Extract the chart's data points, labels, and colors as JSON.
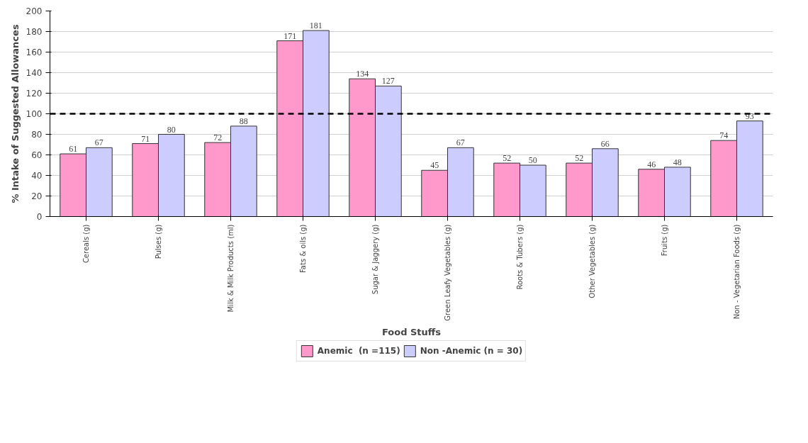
{
  "chart_data": {
    "type": "bar",
    "xlabel": "Food Stuffs",
    "ylabel": "% Intake of Suggested Allowances",
    "categories": [
      "Cereals (g)",
      "Pulses (g)",
      "Milk & Milk Products (ml)",
      "Fats & oils (g)",
      "Sugar & Jaggery (g)",
      "Green Leafy Vegetables (g)",
      "Roots & Tubers (g)",
      "Other Vegetables (g)",
      "Fruits (g)",
      "Non - Vegetarian Foods (g)"
    ],
    "series": [
      {
        "name": "Anemic  (n =115)",
        "color": "#ff99cc",
        "values": [
          61,
          71,
          72,
          171,
          134,
          45,
          52,
          52,
          46,
          74
        ]
      },
      {
        "name": "Non -Anemic (n = 30)",
        "color": "#ccccff",
        "values": [
          67,
          80,
          88,
          181,
          127,
          67,
          50,
          66,
          48,
          93
        ]
      }
    ],
    "ylim": [
      0,
      200
    ],
    "yticks": [
      0,
      20,
      40,
      60,
      80,
      100,
      120,
      140,
      160,
      180,
      200
    ],
    "grid": "y",
    "legend": "bottom",
    "data_labels": true,
    "ref_lines": [
      {
        "axis": "y",
        "value": 100,
        "color": "#000000",
        "line_style": "dashed"
      }
    ]
  }
}
